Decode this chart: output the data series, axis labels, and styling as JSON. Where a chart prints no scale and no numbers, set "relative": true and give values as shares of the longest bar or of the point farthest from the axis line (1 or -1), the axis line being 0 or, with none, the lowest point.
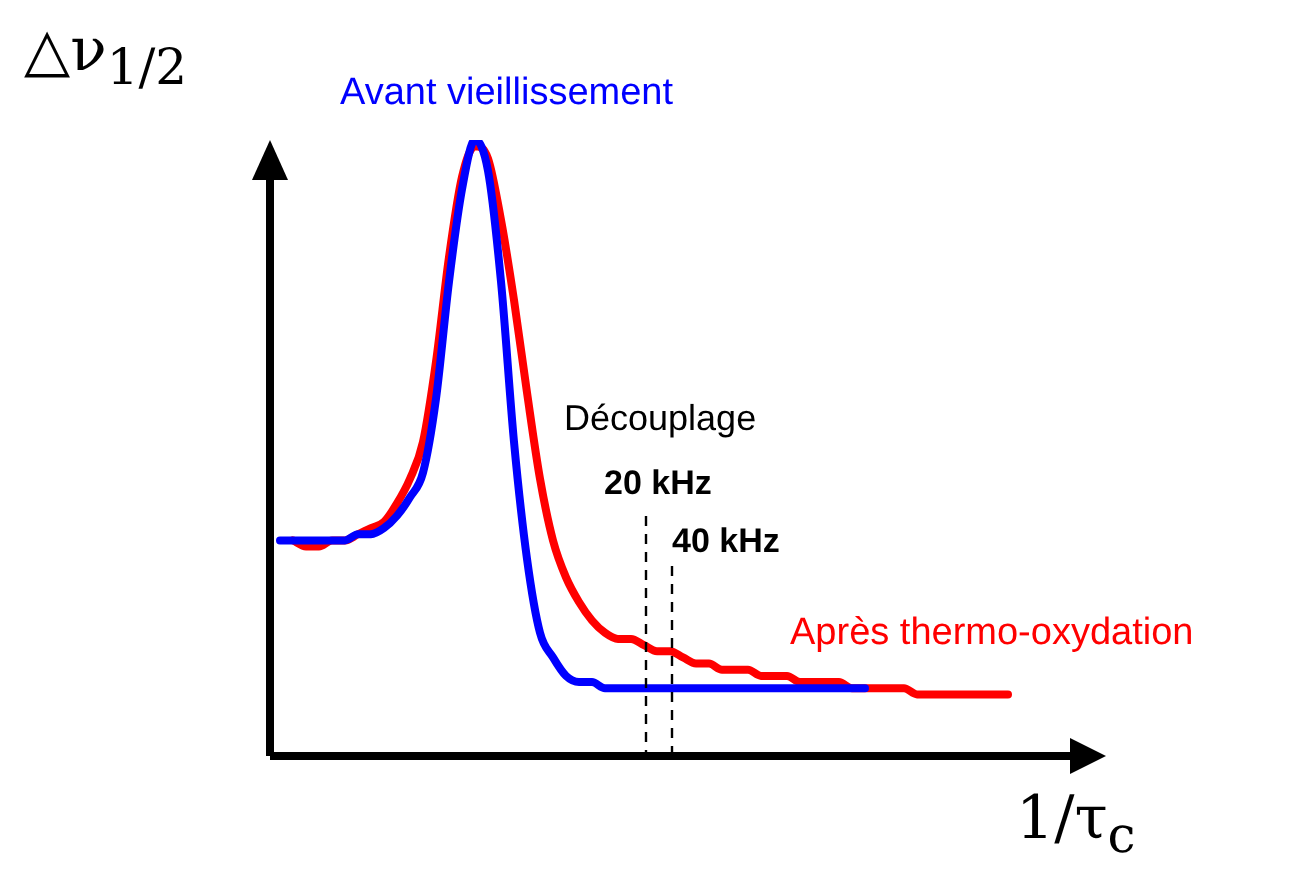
{
  "chart_data": {
    "type": "line",
    "relative": true,
    "xlabel": "1/τ$_{c}$",
    "ylabel": "△ν$_{1/2}$",
    "categories": [
      null,
      null,
      null,
      null,
      null,
      null,
      null,
      null,
      null,
      null,
      null,
      null,
      null,
      null,
      null,
      null,
      null,
      null,
      null,
      null,
      null,
      null,
      null,
      null,
      null,
      null,
      null,
      null,
      null,
      null,
      null,
      null,
      null,
      null,
      null,
      null,
      null,
      null,
      null,
      null,
      null,
      null,
      null,
      null,
      null,
      null,
      null,
      null,
      null,
      null,
      null,
      null,
      null,
      null,
      null,
      null,
      null
    ],
    "series": [
      {
        "name": "Avant vieillissement",
        "color": "#0000ff",
        "values": [
          0.35,
          0.35,
          0.35,
          0.35,
          0.35,
          0.35,
          0.36,
          0.36,
          0.37,
          0.39,
          0.42,
          0.46,
          0.58,
          0.77,
          0.92,
          1,
          0.95,
          0.77,
          0.51,
          0.32,
          0.2,
          0.16,
          0.13,
          0.12,
          0.12,
          0.11,
          0.11,
          0.11,
          0.11,
          0.11,
          0.11,
          0.11,
          0.11,
          0.11,
          0.11,
          0.11,
          0.11,
          0.11,
          0.11,
          0.11,
          0.11,
          0.11,
          0.11,
          0.11,
          0.11,
          0.11,
          null,
          null,
          null,
          null,
          null,
          null,
          null,
          null,
          null,
          null,
          null
        ]
      },
      {
        "name": "Après thermo-oxydation",
        "color": "#ff0000",
        "values": [
          null,
          0.35,
          0.34,
          0.34,
          0.35,
          0.35,
          0.36,
          0.37,
          0.38,
          0.41,
          0.45,
          0.51,
          0.64,
          0.81,
          0.94,
          0.99,
          0.97,
          0.87,
          0.74,
          0.59,
          0.45,
          0.35,
          0.29,
          0.25,
          0.22,
          0.2,
          0.19,
          0.19,
          0.18,
          0.17,
          0.17,
          0.16,
          0.15,
          0.15,
          0.14,
          0.14,
          0.14,
          0.13,
          0.13,
          0.13,
          0.12,
          0.12,
          0.12,
          0.12,
          0.11,
          0.11,
          0.11,
          0.11,
          0.11,
          0.1,
          0.1,
          0.1,
          0.1,
          0.1,
          0.1,
          0.1,
          0.1
        ]
      }
    ],
    "annotations": [
      "Découplage",
      "20 kHz",
      "40 kHz"
    ]
  }
}
